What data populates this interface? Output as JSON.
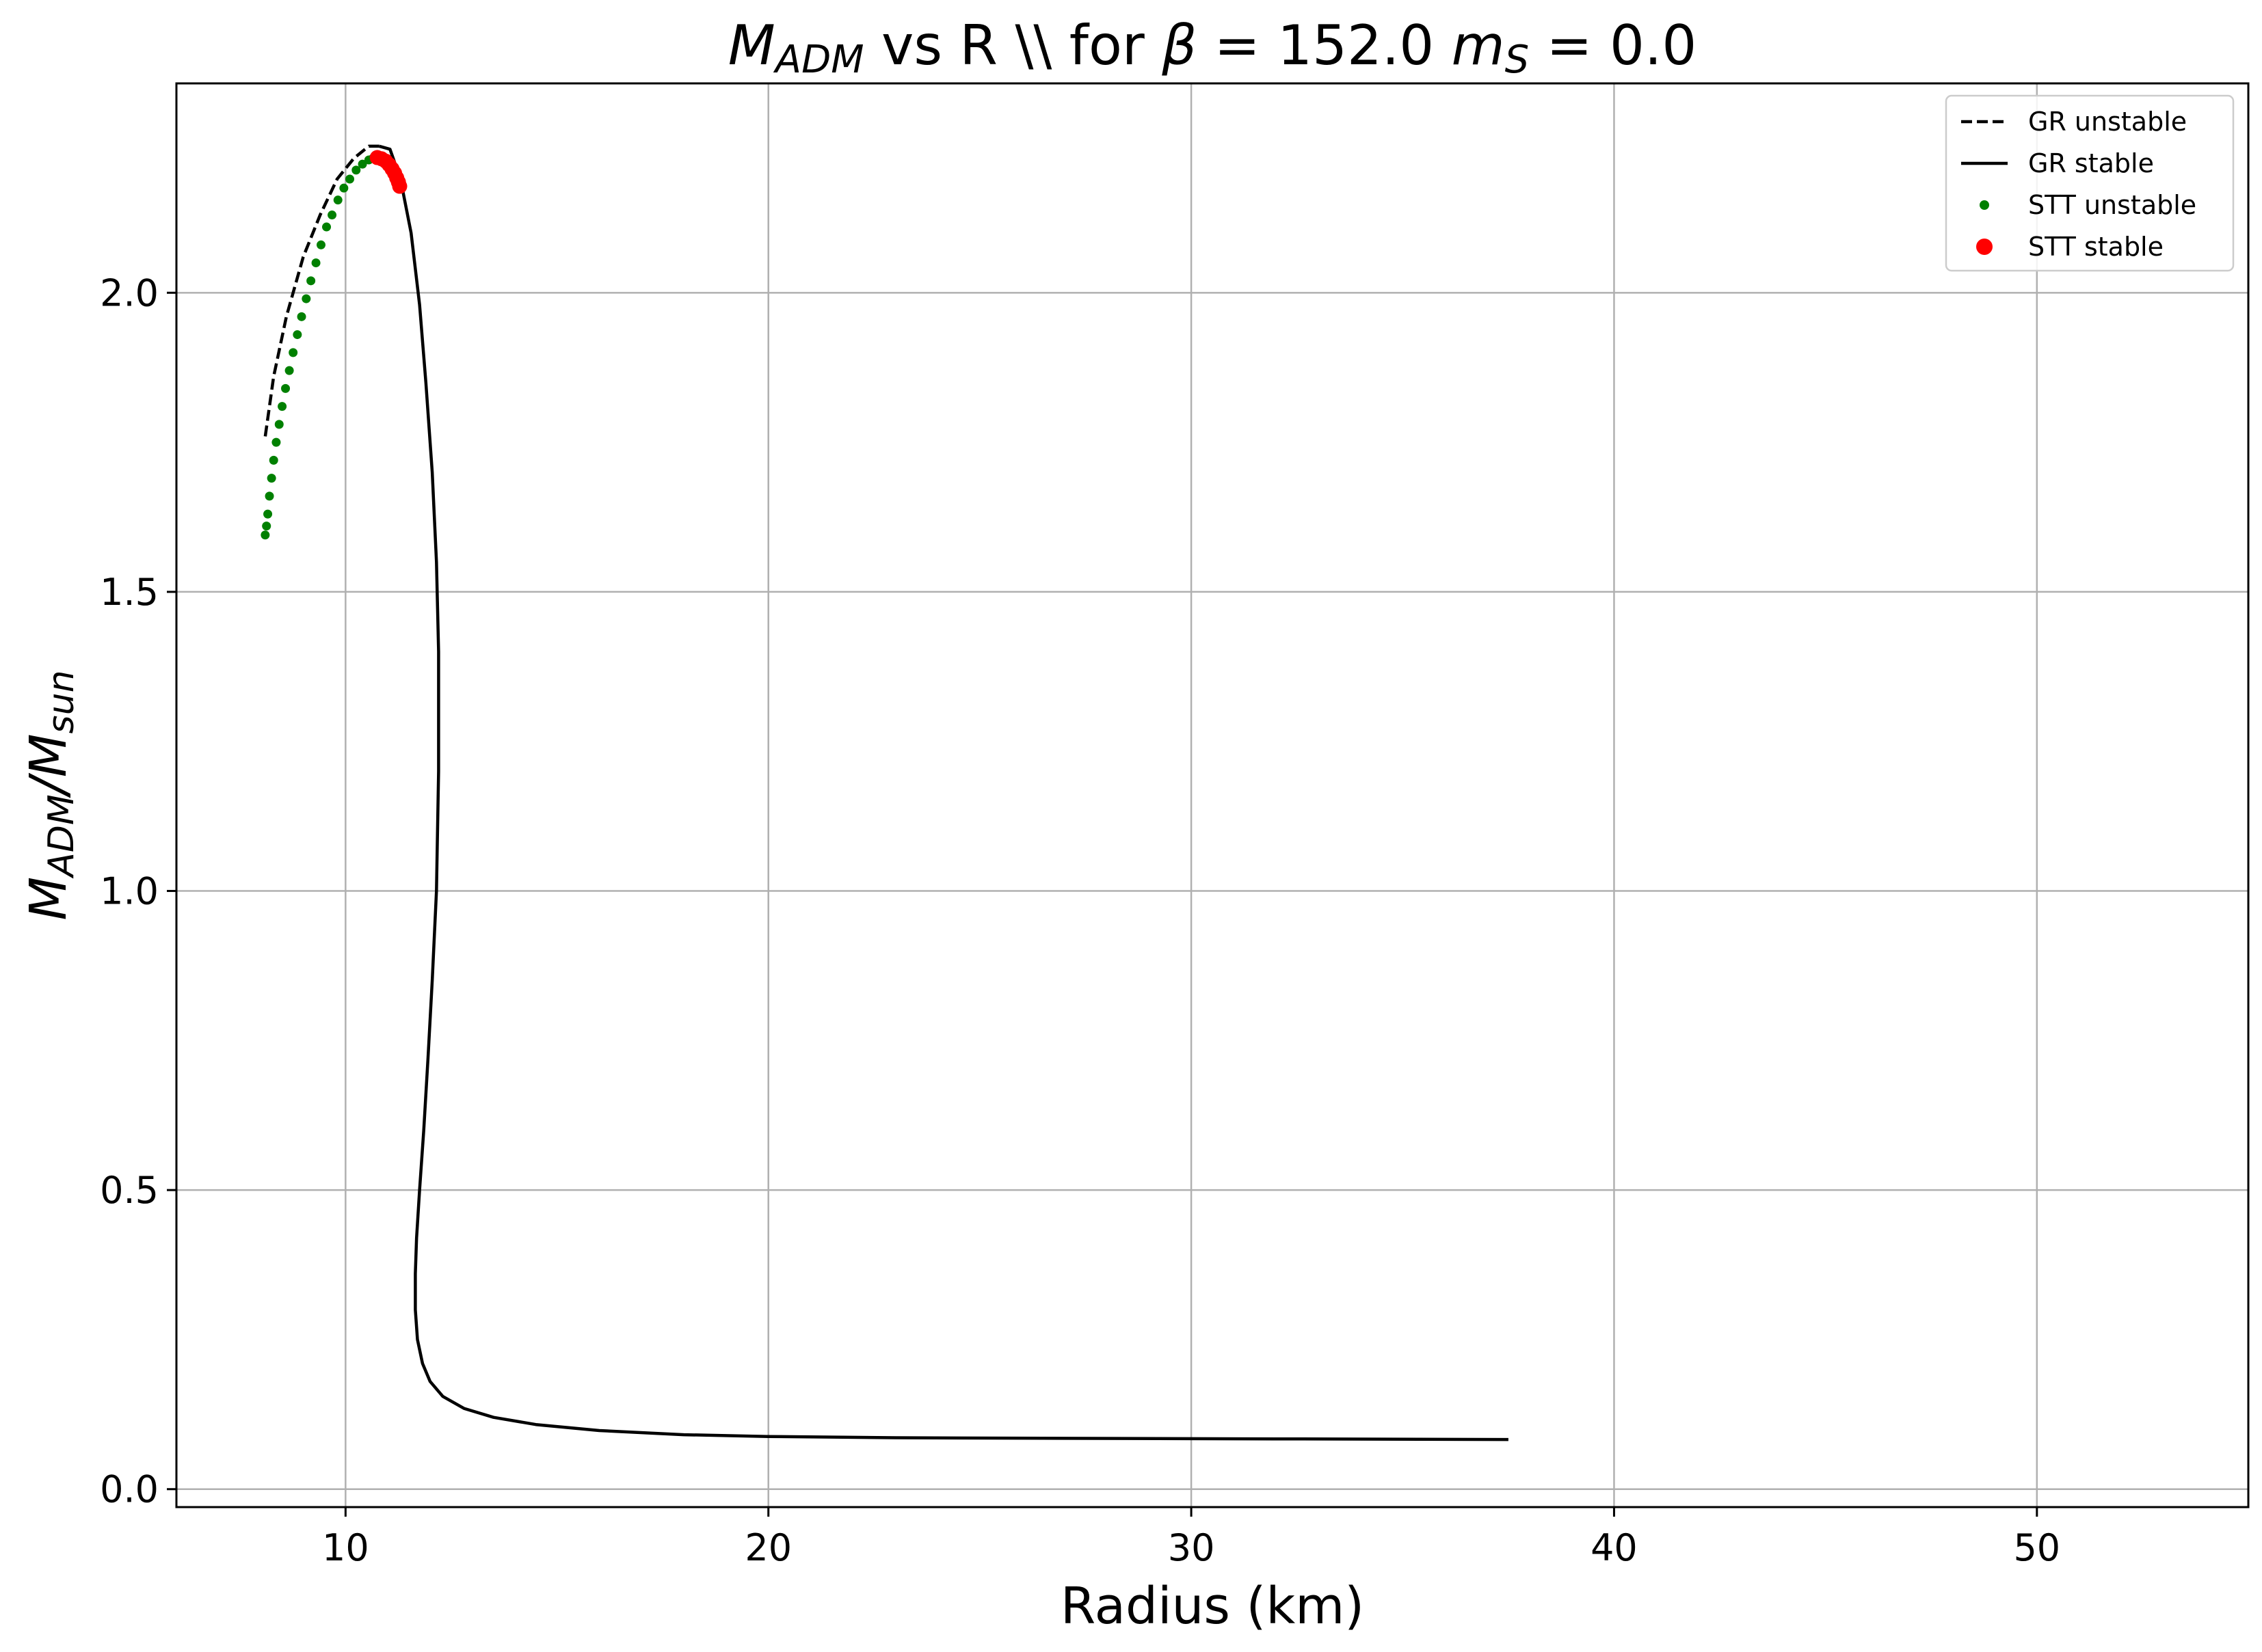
{
  "chart_data": {
    "type": "line",
    "title": {
      "parts": [
        {
          "text": "M",
          "style": "italic"
        },
        {
          "text": "ADM",
          "style": "italic-sub"
        },
        {
          "text": " vs R \\\\ for ",
          "style": "normal"
        },
        {
          "text": "β",
          "style": "italic"
        },
        {
          "text": " = 152.0 ",
          "style": "normal"
        },
        {
          "text": "m",
          "style": "italic"
        },
        {
          "text": "S",
          "style": "italic-sub"
        },
        {
          "text": " = 0.0",
          "style": "normal"
        }
      ]
    },
    "xlabel": "Radius (km)",
    "ylabel": {
      "parts": [
        {
          "text": "M",
          "style": "italic"
        },
        {
          "text": "ADM",
          "style": "italic-sub"
        },
        {
          "text": "/",
          "style": "italic"
        },
        {
          "text": "M",
          "style": "italic"
        },
        {
          "text": "sun",
          "style": "italic-sub"
        }
      ]
    },
    "xlim": [
      6.0,
      55.0
    ],
    "ylim": [
      -0.03,
      2.35
    ],
    "xticks": [
      10,
      20,
      30,
      40,
      50
    ],
    "xtick_labels": [
      "10",
      "20",
      "30",
      "40",
      "50"
    ],
    "yticks": [
      0.0,
      0.5,
      1.0,
      1.5,
      2.0
    ],
    "ytick_labels": [
      "0.0",
      "0.5",
      "1.0",
      "1.5",
      "2.0"
    ],
    "grid": true,
    "legend_position": "top-right",
    "series": [
      {
        "name": "GR unstable",
        "kind": "line",
        "dash": true,
        "color": "#000000",
        "x": [
          8.1,
          8.3,
          8.6,
          9.0,
          9.4,
          9.8,
          10.2,
          10.55,
          10.8
        ],
        "y": [
          1.76,
          1.86,
          1.96,
          2.06,
          2.13,
          2.19,
          2.225,
          2.245,
          2.245
        ]
      },
      {
        "name": "GR stable",
        "kind": "line",
        "dash": false,
        "color": "#000000",
        "x": [
          10.8,
          11.05,
          11.3,
          11.55,
          11.75,
          11.9,
          12.05,
          12.15,
          12.2,
          12.2,
          12.15,
          12.05,
          11.95,
          11.85,
          11.75,
          11.68,
          11.65,
          11.65,
          11.7,
          11.82,
          12.0,
          12.3,
          12.8,
          13.5,
          14.5,
          16.0,
          18.0,
          20.0,
          23.0,
          27.0,
          32.0,
          37.5
        ],
        "y": [
          2.245,
          2.24,
          2.19,
          2.1,
          1.98,
          1.85,
          1.7,
          1.55,
          1.4,
          1.2,
          1.0,
          0.85,
          0.72,
          0.6,
          0.5,
          0.42,
          0.36,
          0.3,
          0.25,
          0.21,
          0.18,
          0.155,
          0.135,
          0.12,
          0.108,
          0.098,
          0.091,
          0.088,
          0.086,
          0.085,
          0.084,
          0.083
        ]
      },
      {
        "name": "STT unstable",
        "kind": "scatter",
        "marker_size": "small",
        "color": "#008000",
        "x": [
          8.1,
          8.13,
          8.16,
          8.2,
          8.25,
          8.3,
          8.36,
          8.43,
          8.5,
          8.58,
          8.67,
          8.76,
          8.86,
          8.96,
          9.07,
          9.18,
          9.3,
          9.42,
          9.55,
          9.68,
          9.82,
          9.96,
          10.1,
          10.25,
          10.4,
          10.55,
          10.65
        ],
        "y": [
          1.595,
          1.61,
          1.63,
          1.66,
          1.69,
          1.72,
          1.75,
          1.78,
          1.81,
          1.84,
          1.87,
          1.9,
          1.93,
          1.96,
          1.99,
          2.02,
          2.05,
          2.08,
          2.11,
          2.13,
          2.155,
          2.175,
          2.19,
          2.205,
          2.215,
          2.222,
          2.225
        ]
      },
      {
        "name": "STT stable",
        "kind": "scatter",
        "marker_size": "large",
        "color": "#ff0000",
        "x": [
          10.75,
          10.85,
          10.95,
          11.03,
          11.1,
          11.16,
          11.21,
          11.25,
          11.28
        ],
        "y": [
          2.226,
          2.224,
          2.22,
          2.214,
          2.207,
          2.2,
          2.192,
          2.185,
          2.178
        ]
      }
    ]
  }
}
